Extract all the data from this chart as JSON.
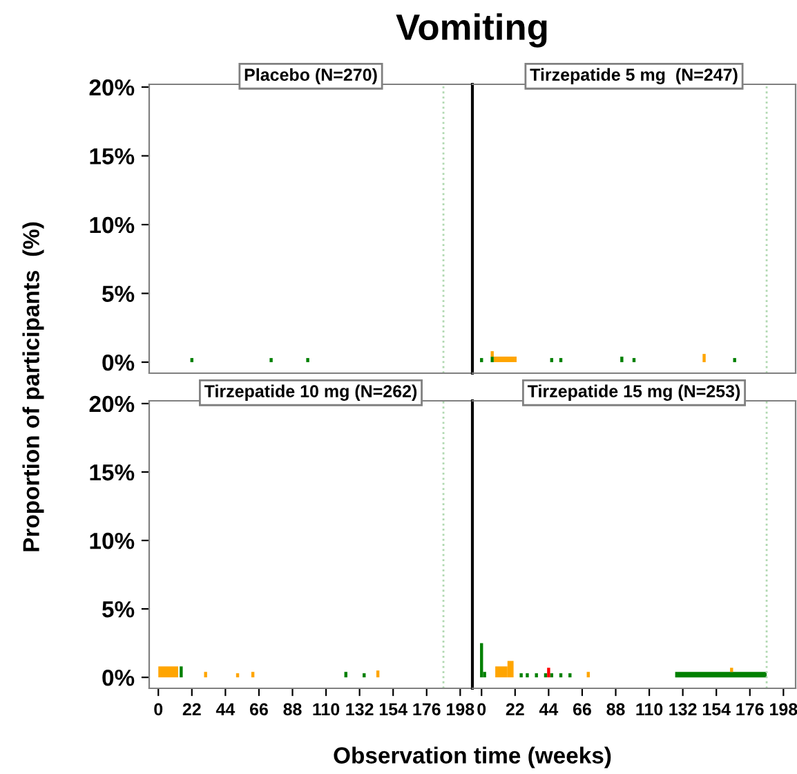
{
  "chart_data": [
    {
      "type": "bar",
      "title": "Vomiting",
      "subtitle": "Placebo (N=270)",
      "ylabel": "Proportion of participants  (%)",
      "xlim": [
        -6,
        206
      ],
      "ylim": [
        -0.8,
        20.2
      ],
      "yticks": [
        {
          "value": 0,
          "label": "0%"
        },
        {
          "value": 5,
          "label": "5%"
        },
        {
          "value": 10,
          "label": "10%"
        },
        {
          "value": 15,
          "label": "15%"
        },
        {
          "value": 20,
          "label": "20%"
        }
      ],
      "tick_labels": "y",
      "grid": false,
      "legend": false,
      "ref_lines": [
        {
          "axis": "x",
          "value": 187,
          "color": "#b0d8b0",
          "line_style": "dotted"
        }
      ],
      "series": [
        {
          "color": "#008000",
          "x": [
            22,
            74,
            98
          ],
          "values": [
            0.3,
            0.3,
            0.3
          ]
        }
      ]
    },
    {
      "type": "bar",
      "subtitle": "Tirzepatide 5 mg  (N=247)",
      "xlim": [
        -6,
        206
      ],
      "ylim": [
        -0.8,
        20.2
      ],
      "tick_labels": false,
      "grid": false,
      "legend": false,
      "ref_lines": [
        {
          "axis": "x",
          "value": 187,
          "color": "#b0d8b0",
          "line_style": "dotted"
        }
      ],
      "series": [
        {
          "color": "#008000",
          "x": [
            0,
            7,
            46,
            52,
            92,
            100,
            166
          ],
          "values": [
            0.3,
            0.4,
            0.3,
            0.3,
            0.4,
            0.3,
            0.3
          ]
        },
        {
          "color": "#ffa500",
          "x": [
            7,
            146
          ],
          "values": [
            0.4,
            0.6
          ],
          "base": [
            0.4,
            0
          ]
        },
        {
          "type": "area",
          "color": "#ffa500",
          "x": [
            8,
            23
          ],
          "values": [
            0.4,
            0.4
          ]
        }
      ]
    },
    {
      "type": "bar",
      "subtitle": "Tirzepatide 10 mg (N=262)",
      "xlim": [
        -6,
        206
      ],
      "xticks": [
        0,
        22,
        44,
        66,
        88,
        110,
        132,
        154,
        176,
        198
      ],
      "ylim": [
        -0.8,
        20.2
      ],
      "yticks": [
        {
          "value": 0,
          "label": "0%"
        },
        {
          "value": 5,
          "label": "5%"
        },
        {
          "value": 10,
          "label": "10%"
        },
        {
          "value": 15,
          "label": "15%"
        },
        {
          "value": 20,
          "label": "20%"
        }
      ],
      "grid": false,
      "legend": false,
      "ref_lines": [
        {
          "axis": "x",
          "value": 187,
          "color": "#b0d8b0",
          "line_style": "dotted"
        }
      ],
      "series": [
        {
          "type": "area",
          "color": "#ffa500",
          "x": [
            0,
            13
          ],
          "values": [
            0.8,
            0.8
          ]
        },
        {
          "color": "#008000",
          "x": [
            15,
            123,
            135
          ],
          "values": [
            0.8,
            0.4,
            0.3
          ]
        },
        {
          "color": "#ffa500",
          "x": [
            31,
            52,
            62,
            144
          ],
          "values": [
            0.4,
            0.3,
            0.4,
            0.5
          ]
        }
      ]
    },
    {
      "type": "bar",
      "subtitle": "Tirzepatide 15 mg (N=253)",
      "xlabel": "Observation time (weeks)",
      "xlim": [
        -6,
        206
      ],
      "xticks": [
        0,
        22,
        44,
        66,
        88,
        110,
        132,
        154,
        176,
        198
      ],
      "ylim": [
        -0.8,
        20.2
      ],
      "tick_labels": "x",
      "grid": false,
      "legend": false,
      "ref_lines": [
        {
          "axis": "x",
          "value": 187,
          "color": "#b0d8b0",
          "line_style": "dotted"
        }
      ],
      "series": [
        {
          "color": "#008000",
          "x": [
            0,
            2,
            26,
            30,
            36,
            42,
            46,
            52,
            58
          ],
          "values": [
            2.5,
            0.4,
            0.3,
            0.3,
            0.3,
            0.3,
            0.3,
            0.3,
            0.3
          ]
        },
        {
          "type": "area",
          "color": "#008000",
          "x": [
            127,
            187
          ],
          "values": [
            0.4,
            0.4
          ]
        },
        {
          "type": "area",
          "color": "#ffa500",
          "x": [
            9,
            17
          ],
          "values": [
            0.8,
            0.8
          ]
        },
        {
          "type": "area",
          "color": "#ffa500",
          "x": [
            17,
            21
          ],
          "values": [
            1.2,
            1.2
          ]
        },
        {
          "color": "#ffa500",
          "x": [
            70,
            164
          ],
          "values": [
            0.4,
            0.3
          ],
          "base": [
            0,
            0.4
          ]
        },
        {
          "color": "#ff0000",
          "x": [
            44
          ],
          "values": [
            0.7
          ]
        }
      ]
    }
  ]
}
